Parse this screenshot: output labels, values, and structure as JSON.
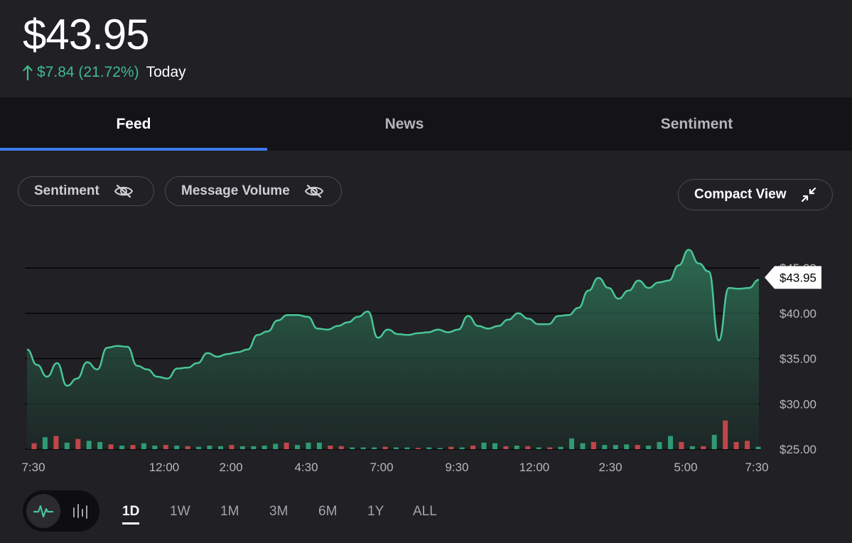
{
  "header": {
    "price": "$43.95",
    "change": "$7.84 (21.72%)",
    "period": "Today"
  },
  "tabs": [
    {
      "label": "Feed",
      "active": true
    },
    {
      "label": "News",
      "active": false
    },
    {
      "label": "Sentiment",
      "active": false
    }
  ],
  "toggles": {
    "sentiment_label": "Sentiment",
    "message_volume_label": "Message Volume",
    "compact_view_label": "Compact View"
  },
  "colors": {
    "accent_up": "#3fba8c",
    "volume_up": "#2f9a74",
    "volume_down": "#c0464a",
    "tab_indicator": "#3c7bf2"
  },
  "chart_data": {
    "type": "area",
    "y_ticks": [
      "$45.00",
      "$40.00",
      "$35.00",
      "$30.00",
      "$25.00"
    ],
    "ylim": [
      25,
      45
    ],
    "x_tick_labels": [
      "7:30",
      "12:00",
      "2:00",
      "4:30",
      "7:00",
      "9:30",
      "12:00",
      "2:30",
      "5:00",
      "7:30"
    ],
    "current_price_label": "$43.95",
    "price": [
      36.0,
      34.3,
      33.0,
      34.5,
      32.0,
      32.8,
      34.6,
      33.8,
      36.2,
      36.4,
      36.3,
      34.2,
      33.8,
      33.0,
      32.8,
      33.9,
      34.0,
      34.5,
      35.6,
      35.2,
      35.5,
      35.7,
      36.0,
      37.6,
      38.0,
      39.2,
      39.8,
      39.8,
      39.6,
      38.3,
      38.2,
      38.6,
      39.0,
      39.6,
      40.2,
      37.3,
      38.2,
      37.7,
      37.6,
      37.8,
      37.9,
      38.2,
      37.9,
      38.2,
      39.7,
      38.6,
      38.3,
      38.6,
      39.3,
      40.0,
      39.4,
      38.8,
      38.8,
      39.7,
      39.8,
      40.6,
      42.5,
      43.9,
      42.8,
      41.6,
      42.5,
      43.6,
      42.8,
      43.4,
      43.6,
      45.3,
      47.0,
      45.5,
      44.6,
      37.0,
      42.8,
      42.7,
      42.8,
      43.7
    ],
    "volume": [
      {
        "v": 1.0,
        "up": false
      },
      {
        "v": 2.0,
        "up": true
      },
      {
        "v": 2.2,
        "up": false
      },
      {
        "v": 1.1,
        "up": true
      },
      {
        "v": 1.7,
        "up": false
      },
      {
        "v": 1.4,
        "up": true
      },
      {
        "v": 1.2,
        "up": true
      },
      {
        "v": 0.8,
        "up": false
      },
      {
        "v": 0.6,
        "up": true
      },
      {
        "v": 0.7,
        "up": false
      },
      {
        "v": 1.0,
        "up": true
      },
      {
        "v": 0.6,
        "up": true
      },
      {
        "v": 0.7,
        "up": false
      },
      {
        "v": 0.6,
        "up": true
      },
      {
        "v": 0.5,
        "up": false
      },
      {
        "v": 0.4,
        "up": true
      },
      {
        "v": 0.6,
        "up": true
      },
      {
        "v": 0.5,
        "up": true
      },
      {
        "v": 0.7,
        "up": false
      },
      {
        "v": 0.5,
        "up": true
      },
      {
        "v": 0.5,
        "up": true
      },
      {
        "v": 0.6,
        "up": true
      },
      {
        "v": 0.9,
        "up": true
      },
      {
        "v": 1.1,
        "up": false
      },
      {
        "v": 0.7,
        "up": true
      },
      {
        "v": 1.1,
        "up": true
      },
      {
        "v": 1.1,
        "up": true
      },
      {
        "v": 0.6,
        "up": false
      },
      {
        "v": 0.5,
        "up": false
      },
      {
        "v": 0.3,
        "up": true
      },
      {
        "v": 0.3,
        "up": true
      },
      {
        "v": 0.3,
        "up": true
      },
      {
        "v": 0.4,
        "up": false
      },
      {
        "v": 0.3,
        "up": true
      },
      {
        "v": 0.3,
        "up": true
      },
      {
        "v": 0.2,
        "up": false
      },
      {
        "v": 0.3,
        "up": true
      },
      {
        "v": 0.2,
        "up": true
      },
      {
        "v": 0.4,
        "up": false
      },
      {
        "v": 0.3,
        "up": true
      },
      {
        "v": 0.6,
        "up": false
      },
      {
        "v": 1.1,
        "up": true
      },
      {
        "v": 1.0,
        "up": true
      },
      {
        "v": 0.5,
        "up": false
      },
      {
        "v": 0.6,
        "up": true
      },
      {
        "v": 0.5,
        "up": false
      },
      {
        "v": 0.3,
        "up": true
      },
      {
        "v": 0.3,
        "up": false
      },
      {
        "v": 0.4,
        "up": true
      },
      {
        "v": 1.8,
        "up": true
      },
      {
        "v": 1.0,
        "up": true
      },
      {
        "v": 1.2,
        "up": false
      },
      {
        "v": 0.7,
        "up": true
      },
      {
        "v": 0.7,
        "up": true
      },
      {
        "v": 0.8,
        "up": true
      },
      {
        "v": 0.7,
        "up": false
      },
      {
        "v": 0.6,
        "up": true
      },
      {
        "v": 1.2,
        "up": true
      },
      {
        "v": 2.2,
        "up": true
      },
      {
        "v": 1.2,
        "up": false
      },
      {
        "v": 0.5,
        "up": true
      },
      {
        "v": 0.5,
        "up": false
      },
      {
        "v": 2.4,
        "up": true
      },
      {
        "v": 4.8,
        "up": false
      },
      {
        "v": 1.2,
        "up": false
      },
      {
        "v": 1.4,
        "up": false
      },
      {
        "v": 0.4,
        "up": true
      }
    ]
  }
}
